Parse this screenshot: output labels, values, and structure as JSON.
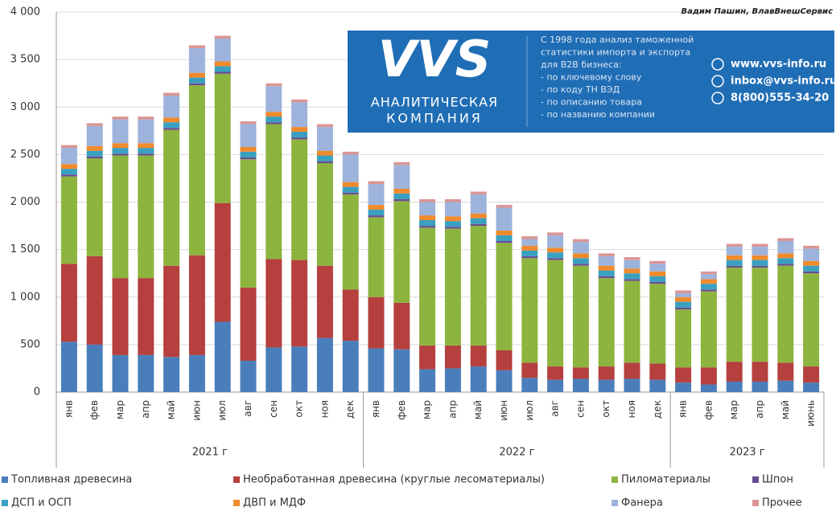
{
  "chart_data": {
    "type": "stacked_bar",
    "author": "Вадим Пашин, ВлавВнешСервис",
    "banner": {
      "logo": "VVS",
      "company": [
        "АНАЛИТИЧЕСКАЯ",
        "КОМПАНИЯ"
      ],
      "text": [
        "С 1998 года анализ таможенной",
        "статистики импорта и экспорта",
        "для B2B бизнеса:",
        "- по ключевому слову",
        "- по коду ТН ВЭД",
        "- по описанию товара",
        "- по названию компании"
      ],
      "contacts": [
        "www.vvs-info.ru",
        "inbox@vvs-info.ru",
        "8(800)555-34-20"
      ]
    },
    "categories": [
      "янв",
      "фев",
      "мар",
      "апр",
      "май",
      "июн",
      "июл",
      "авг",
      "сен",
      "окт",
      "ноя",
      "дек",
      "янв",
      "фев",
      "мар",
      "апр",
      "май",
      "июн",
      "июл",
      "авг",
      "сен",
      "окт",
      "ноя",
      "дек",
      "янв",
      "фев",
      "мар",
      "апр",
      "май",
      "июнь"
    ],
    "years": [
      "2021 г",
      "2022 г",
      "2023 г"
    ],
    "ylim": [
      0,
      4000
    ],
    "yticks": [
      0,
      500,
      {
        "value": 1000,
        "label": "1 000"
      },
      {
        "value": 1500,
        "label": "1 500"
      },
      {
        "value": 2000,
        "label": "2 000"
      },
      {
        "value": 2500,
        "label": "2 500"
      },
      {
        "value": 3000,
        "label": "3 000"
      },
      {
        "value": 3500,
        "label": "3 500"
      },
      {
        "value": 4000,
        "label": "4 000"
      }
    ],
    "grid": true,
    "series": [
      {
        "name": "Топливная древесина",
        "color": "#4a7ebb",
        "values": [
          530,
          500,
          390,
          390,
          370,
          390,
          740,
          330,
          470,
          480,
          570,
          540,
          460,
          450,
          240,
          250,
          270,
          230,
          150,
          130,
          140,
          130,
          140,
          130,
          100,
          80,
          110,
          110,
          120,
          100
        ]
      },
      {
        "name": "Необработанная древесина (круглые лесоматериалы)",
        "color": "#b5403e",
        "values": [
          820,
          930,
          810,
          810,
          960,
          1050,
          1250,
          770,
          930,
          910,
          760,
          540,
          540,
          490,
          250,
          240,
          220,
          210,
          160,
          140,
          120,
          140,
          170,
          170,
          160,
          180,
          210,
          210,
          190,
          170
        ]
      },
      {
        "name": "Пиломатериалы",
        "color": "#8db43e",
        "values": [
          920,
          1030,
          1290,
          1290,
          1430,
          1790,
          1360,
          1350,
          1420,
          1270,
          1080,
          1000,
          840,
          1070,
          1240,
          1230,
          1260,
          1130,
          1100,
          1120,
          1070,
          930,
          860,
          840,
          610,
          800,
          990,
          990,
          1020,
          980
        ]
      },
      {
        "name": "Шпон",
        "color": "#6a4c93",
        "values": [
          20,
          20,
          20,
          20,
          20,
          20,
          20,
          20,
          20,
          20,
          20,
          20,
          20,
          20,
          20,
          20,
          20,
          20,
          20,
          20,
          20,
          20,
          20,
          20,
          20,
          20,
          20,
          20,
          20,
          20
        ]
      },
      {
        "name": "ДСП и ОСП",
        "color": "#3aa0c0",
        "values": [
          60,
          60,
          60,
          60,
          60,
          60,
          60,
          60,
          60,
          60,
          60,
          60,
          60,
          60,
          60,
          60,
          60,
          60,
          60,
          60,
          60,
          60,
          60,
          60,
          60,
          60,
          60,
          60,
          60,
          60
        ]
      },
      {
        "name": "ДВП и МДФ",
        "color": "#f08a2c",
        "values": [
          50,
          50,
          50,
          50,
          50,
          50,
          50,
          50,
          50,
          50,
          50,
          50,
          50,
          50,
          50,
          50,
          50,
          50,
          50,
          50,
          50,
          50,
          50,
          50,
          50,
          50,
          50,
          50,
          50,
          50
        ]
      },
      {
        "name": "Фанера",
        "color": "#9db3dc",
        "values": [
          170,
          210,
          250,
          250,
          230,
          260,
          240,
          240,
          270,
          260,
          250,
          290,
          220,
          250,
          140,
          150,
          200,
          240,
          70,
          130,
          120,
          100,
          90,
          80,
          40,
          50,
          90,
          90,
          130,
          130
        ]
      },
      {
        "name": "Прочее",
        "color": "#d99694",
        "values": [
          30,
          30,
          30,
          30,
          30,
          30,
          30,
          30,
          30,
          30,
          30,
          30,
          30,
          30,
          30,
          30,
          30,
          30,
          30,
          30,
          30,
          30,
          30,
          30,
          30,
          30,
          30,
          30,
          30,
          30
        ]
      }
    ]
  }
}
